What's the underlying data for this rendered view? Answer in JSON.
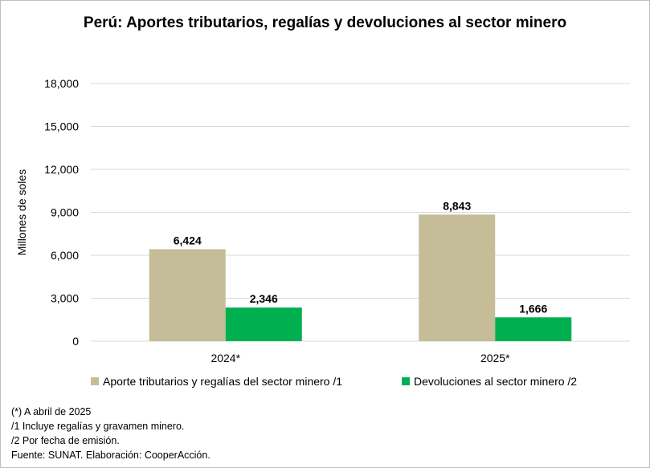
{
  "chart_data": {
    "type": "bar",
    "title": "Perú: Aportes tributarios, regalías y devoluciones al sector minero",
    "ylabel": "Millones de soles",
    "xlabel": "",
    "categories": [
      "2024*",
      "2025*"
    ],
    "series": [
      {
        "name": "Aporte tributarios y regalías del sector minero /1",
        "values": [
          6424,
          8843
        ],
        "color": "#c4bd97",
        "labels": [
          "6,424",
          "8,843"
        ]
      },
      {
        "name": "Devoluciones al sector minero /2",
        "values": [
          2346,
          1666
        ],
        "color": "#00b050",
        "labels": [
          "2,346",
          "1,666"
        ]
      }
    ],
    "ylim": [
      0,
      18000
    ],
    "yticks": [
      0,
      3000,
      6000,
      9000,
      12000,
      15000,
      18000
    ],
    "ytick_labels": [
      "0",
      "3,000",
      "6,000",
      "9,000",
      "12,000",
      "15,000",
      "18,000"
    ],
    "grid": true,
    "legend_position": "bottom"
  },
  "notes": [
    "(*) A abril de 2025",
    "/1 Incluye regalías y gravamen minero.",
    "/2 Por fecha de emisión.",
    "Fuente: SUNAT. Elaboración: CooperAcción."
  ]
}
